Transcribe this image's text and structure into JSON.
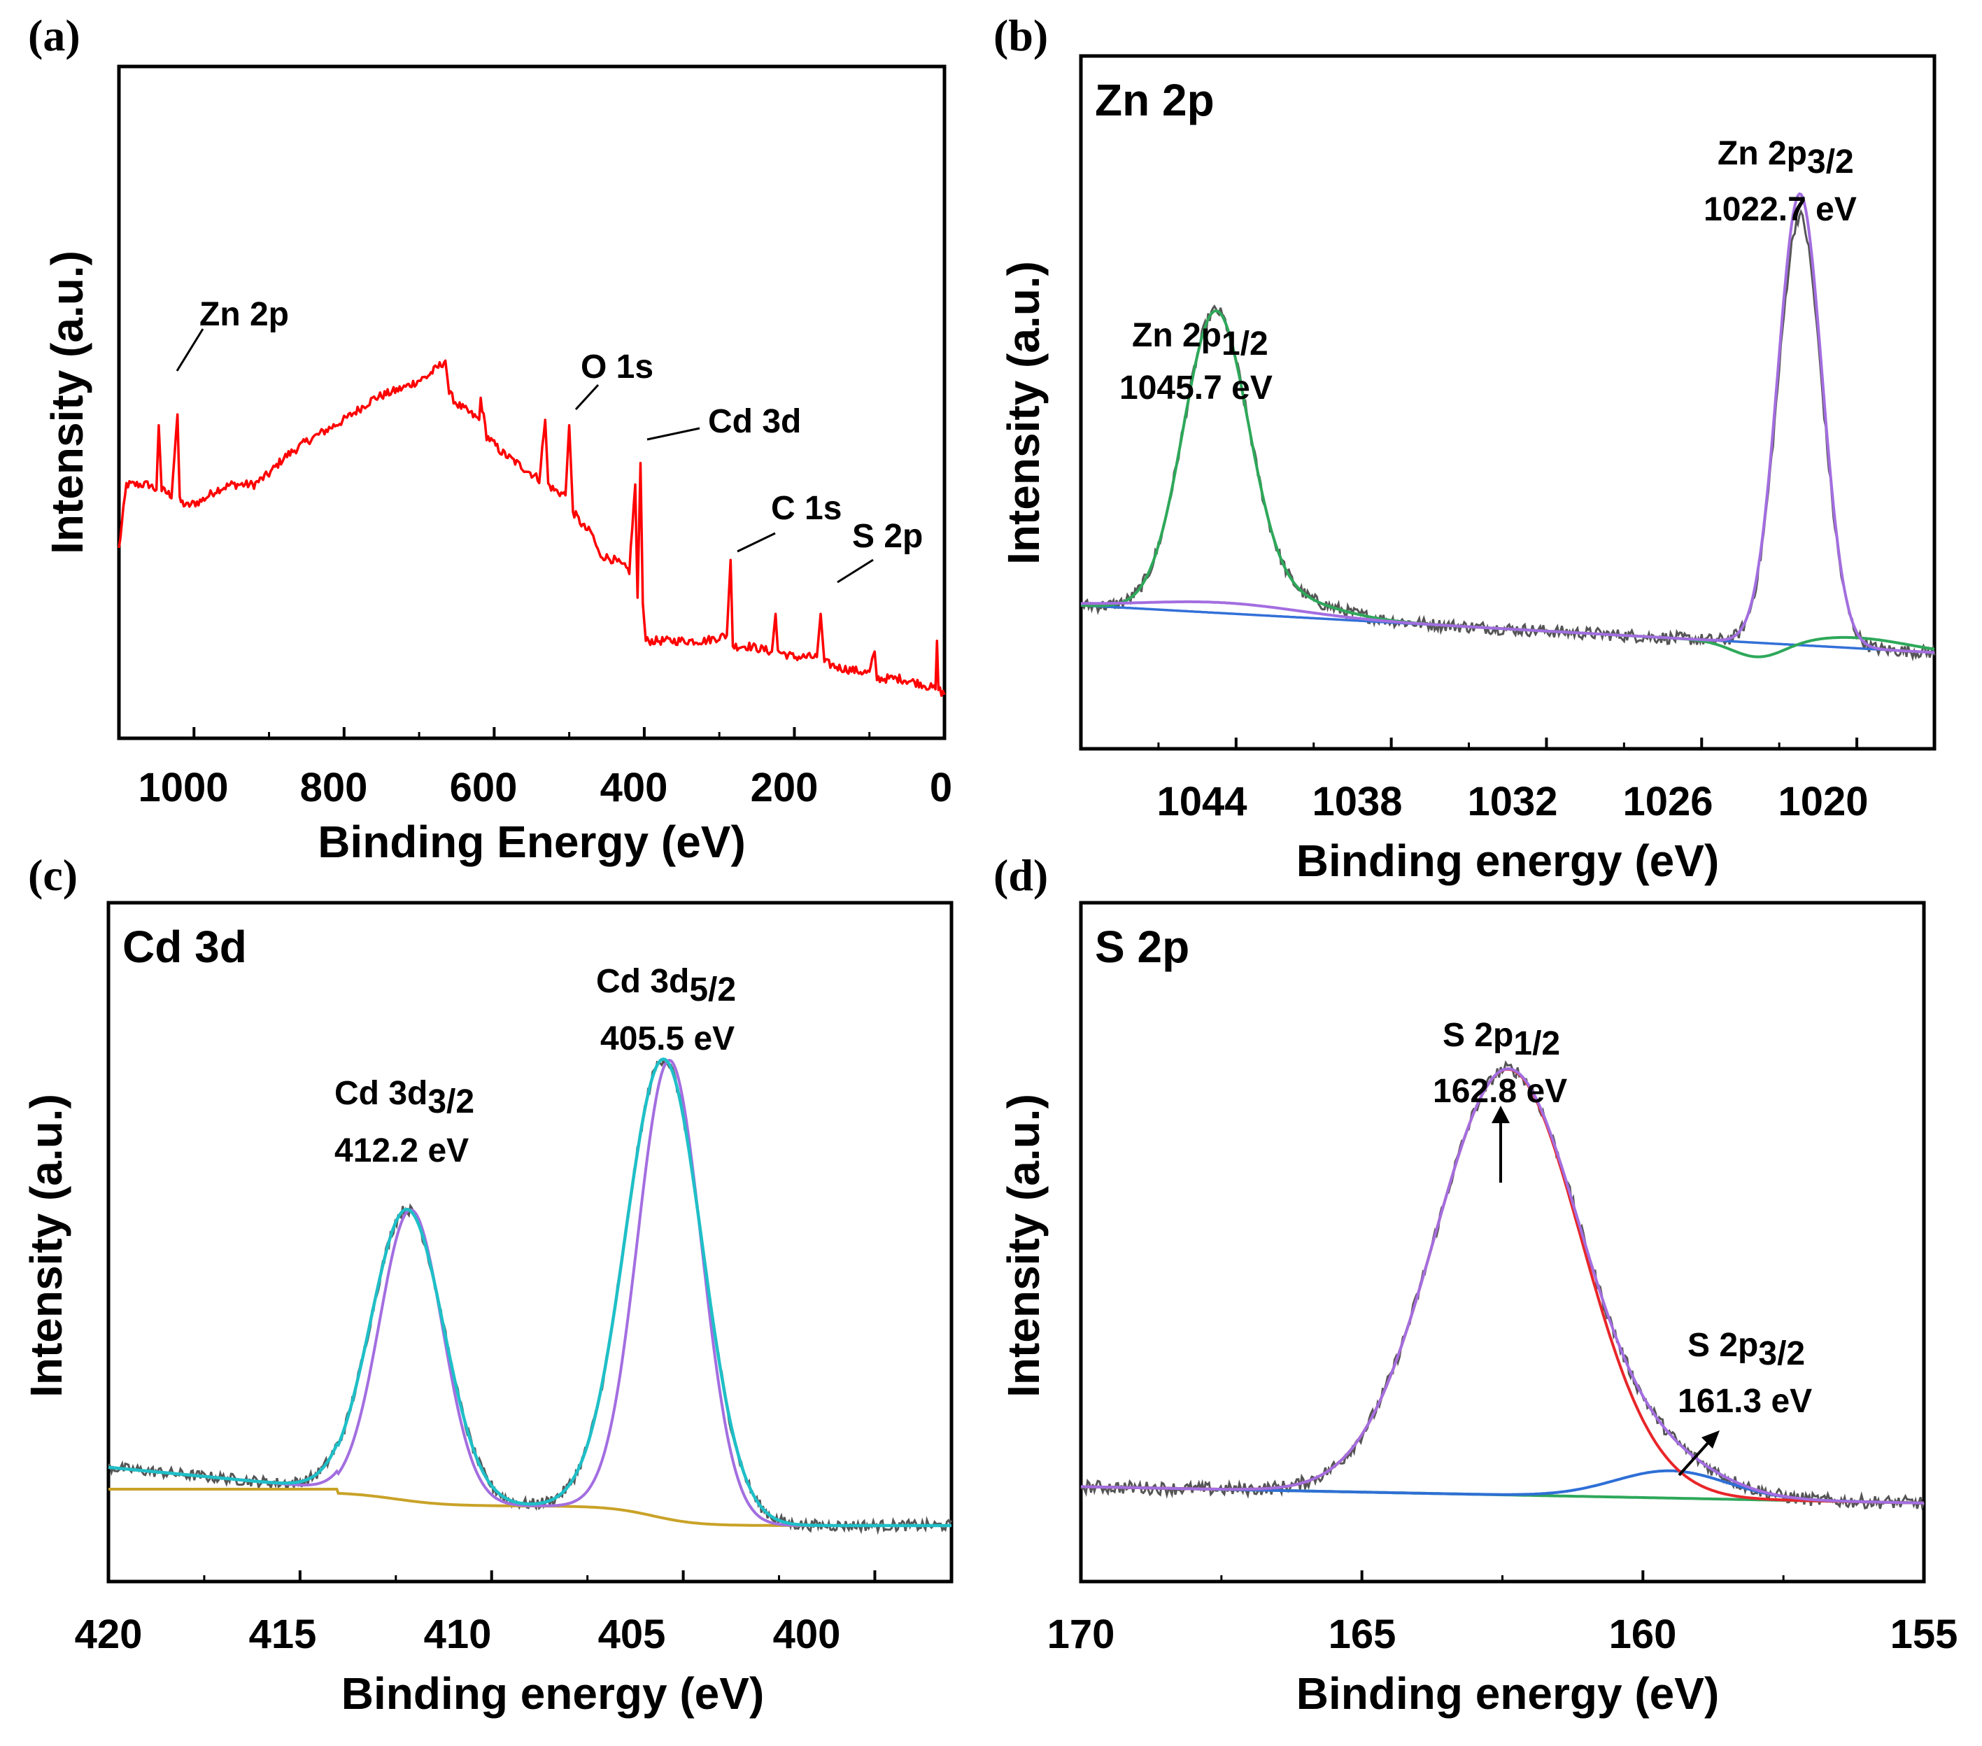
{
  "chart_data": [
    {
      "type": "line",
      "panel_label": "(a)",
      "title": "",
      "xlabel": "Binding Energy (eV)",
      "ylabel": "Intensity (a.u.)",
      "xlim": [
        1100,
        0
      ],
      "x_reversed": true,
      "xticks": [
        "1000",
        "800",
        "600",
        "400",
        "200",
        "0"
      ],
      "series": [
        {
          "color": "#ff0000",
          "points": [
            [
              1100,
              0.26
            ],
            [
              1090,
              0.38
            ],
            [
              1080,
              0.38
            ],
            [
              1060,
              0.38
            ],
            [
              1050,
              0.37
            ],
            [
              1047,
              0.49
            ],
            [
              1043,
              0.37
            ],
            [
              1030,
              0.36
            ],
            [
              1022,
              0.51
            ],
            [
              1019,
              0.35
            ],
            [
              1010,
              0.34
            ],
            [
              990,
              0.35
            ],
            [
              970,
              0.37
            ],
            [
              950,
              0.38
            ],
            [
              920,
              0.38
            ],
            [
              900,
              0.4
            ],
            [
              880,
              0.43
            ],
            [
              850,
              0.46
            ],
            [
              800,
              0.5
            ],
            [
              760,
              0.54
            ],
            [
              720,
              0.56
            ],
            [
              690,
              0.58
            ],
            [
              665,
              0.61
            ],
            [
              660,
              0.55
            ],
            [
              650,
              0.53
            ],
            [
              640,
              0.52
            ],
            [
              620,
              0.5
            ],
            [
              618,
              0.54
            ],
            [
              610,
              0.47
            ],
            [
              590,
              0.44
            ],
            [
              570,
              0.42
            ],
            [
              560,
              0.41
            ],
            [
              540,
              0.39
            ],
            [
              532,
              0.5
            ],
            [
              528,
              0.38
            ],
            [
              520,
              0.37
            ],
            [
              505,
              0.36
            ],
            [
              500,
              0.49
            ],
            [
              495,
              0.33
            ],
            [
              480,
              0.3
            ],
            [
              470,
              0.29
            ],
            [
              460,
              0.25
            ],
            [
              440,
              0.24
            ],
            [
              420,
              0.22
            ],
            [
              412,
              0.38
            ],
            [
              409,
              0.17
            ],
            [
              405,
              0.42
            ],
            [
              402,
              0.16
            ],
            [
              398,
              0.09
            ],
            [
              380,
              0.09
            ],
            [
              350,
              0.09
            ],
            [
              320,
              0.09
            ],
            [
              290,
              0.1
            ],
            [
              285,
              0.24
            ],
            [
              282,
              0.08
            ],
            [
              260,
              0.08
            ],
            [
              230,
              0.07
            ],
            [
              225,
              0.14
            ],
            [
              222,
              0.07
            ],
            [
              200,
              0.06
            ],
            [
              170,
              0.06
            ],
            [
              165,
              0.14
            ],
            [
              160,
              0.05
            ],
            [
              140,
              0.04
            ],
            [
              100,
              0.03
            ],
            [
              93,
              0.07
            ],
            [
              90,
              0.02
            ],
            [
              60,
              0.02
            ],
            [
              30,
              0.01
            ],
            [
              12,
              0.0
            ],
            [
              10,
              0.09
            ],
            [
              8,
              0.0
            ],
            [
              0,
              -0.01
            ]
          ]
        }
      ],
      "annotations": [
        "Zn 2p",
        "O 1s",
        "Cd 3d",
        "C 1s",
        "S 2p"
      ]
    },
    {
      "type": "line",
      "panel_label": "(b)",
      "title": "Zn 2p",
      "xlabel": "Binding energy (eV)",
      "ylabel": "Intensity (a.u.)",
      "xlim": [
        1050,
        1017
      ],
      "x_reversed": true,
      "xticks": [
        "1044",
        "1038",
        "1032",
        "1026",
        "1020"
      ],
      "peaks": [
        {
          "name": "Zn 2p",
          "sub": "1/2",
          "energy_label": "1045.7 eV",
          "center": 1045.7,
          "height": 0.55
        },
        {
          "name": "Zn 2p",
          "sub": "3/2",
          "energy_label": "1022.7 eV",
          "center": 1022.7,
          "height": 0.86
        }
      ],
      "series": [
        {
          "role": "raw",
          "color": "#555555"
        },
        {
          "role": "fit",
          "color": "#a36ee0"
        },
        {
          "role": "component",
          "color": "#2ea85a"
        },
        {
          "role": "baseline",
          "color": "#3370d8"
        }
      ]
    },
    {
      "type": "line",
      "panel_label": "(c)",
      "title": "Cd 3d",
      "xlabel": "Binding energy (eV)",
      "ylabel": "Intensity (a.u.)",
      "xlim": [
        420,
        398
      ],
      "x_reversed": true,
      "xticks": [
        "420",
        "415",
        "410",
        "405",
        "400"
      ],
      "peaks": [
        {
          "name": "Cd 3d",
          "sub": "3/2",
          "energy_label": "412.2 eV",
          "center": 412.2,
          "height": 0.52
        },
        {
          "name": "Cd 3d",
          "sub": "5/2",
          "energy_label": "405.5 eV",
          "center": 405.5,
          "height": 0.82
        }
      ],
      "series": [
        {
          "role": "raw",
          "color": "#555555"
        },
        {
          "role": "fit",
          "color": "#a36ee0"
        },
        {
          "role": "component",
          "color": "#1fbfc7"
        },
        {
          "role": "baseline",
          "color": "#c9a227"
        }
      ]
    },
    {
      "type": "line",
      "panel_label": "(d)",
      "title": "S 2p",
      "xlabel": "Binding energy (eV)",
      "ylabel": "Intensity (a.u.)",
      "xlim": [
        170,
        155
      ],
      "x_reversed": true,
      "xticks": [
        "170",
        "165",
        "160",
        "155"
      ],
      "peaks": [
        {
          "name": "S 2p",
          "sub": "1/2",
          "energy_label": "162.8 eV",
          "center": 162.8,
          "height": 0.78
        },
        {
          "name": "S 2p",
          "sub": "3/2",
          "energy_label": "161.3 eV",
          "center": 161.3,
          "height": 0.05
        }
      ],
      "series": [
        {
          "role": "raw",
          "color": "#555555"
        },
        {
          "role": "fit",
          "color": "#a36ee0"
        },
        {
          "role": "component",
          "color": "#e8262a"
        },
        {
          "role": "component",
          "color": "#2f6fd6"
        },
        {
          "role": "baseline",
          "color": "#2ea85a"
        }
      ]
    }
  ]
}
